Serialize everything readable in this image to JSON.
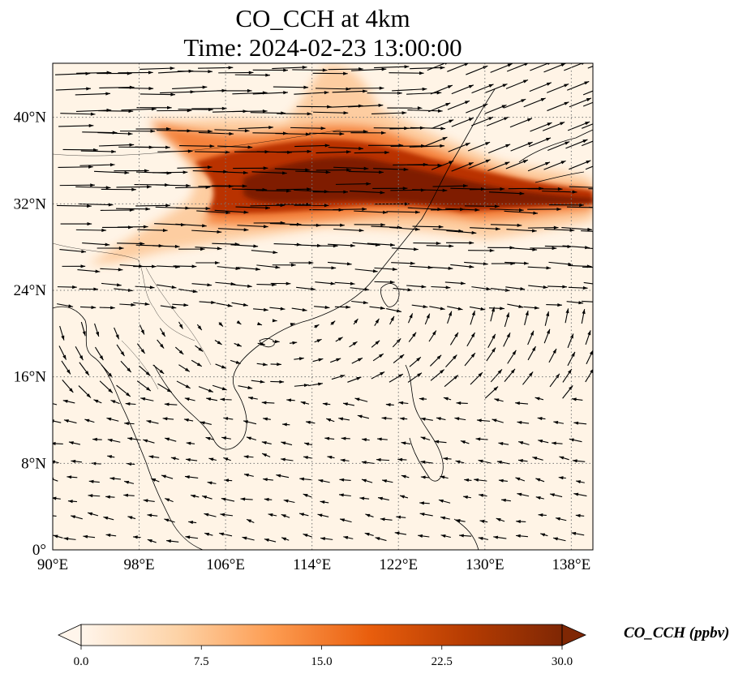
{
  "title": {
    "line1": "CO_CCH at 4km",
    "line2": "Time: 2024-02-23 13:00:00"
  },
  "map": {
    "lon_range": [
      90,
      140
    ],
    "lat_range": [
      0,
      45
    ],
    "lon_ticks": [
      "90°E",
      "98°E",
      "106°E",
      "114°E",
      "122°E",
      "130°E",
      "138°E"
    ],
    "lon_tick_values": [
      90,
      98,
      106,
      114,
      122,
      130,
      138
    ],
    "lat_ticks": [
      "0°",
      "8°N",
      "16°N",
      "24°N",
      "32°N",
      "40°N"
    ],
    "lat_tick_values": [
      0,
      8,
      16,
      24,
      32,
      40
    ],
    "gridlines": true,
    "features": [
      "coastlines",
      "country borders",
      "wind vectors"
    ]
  },
  "colorbar": {
    "label": "CO_CCH (ppbv)",
    "min": 0,
    "max": 30,
    "ticks": [
      "0.0",
      "7.5",
      "15.0",
      "22.5",
      "30.0"
    ],
    "tick_values": [
      0,
      7.5,
      15,
      22.5,
      30
    ],
    "extend": "both",
    "colormap": [
      "#fff5eb",
      "#fdd3a7",
      "#fd9b50",
      "#e95e0d",
      "#b63c02",
      "#7f2704"
    ]
  }
}
